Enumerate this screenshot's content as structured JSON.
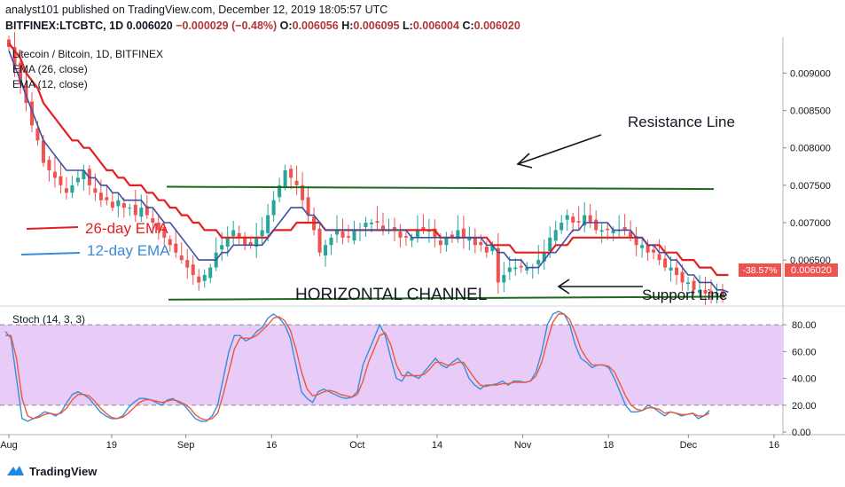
{
  "header": {
    "publisher": "analyst101 published on TradingView.com, December 12, 2019 18:05:57 UTC",
    "symbol": "BITFINEX:LTCBTC, 1D",
    "last": "0.006020",
    "change": "−0.000029 (−0.48%)",
    "o_label": "O:",
    "o_value": "0.006056",
    "h_label": "H:",
    "h_value": "0.006095",
    "l_label": "L:",
    "l_value": "0.006004",
    "c_label": "C:",
    "c_value": "0.006020"
  },
  "legend": {
    "pair": "Litecoin / Bitcoin, 1D, BITFINEX",
    "ema26": "EMA (26, close)",
    "ema12": "EMA (12, close)",
    "stoch": "Stoch (14, 3, 3)"
  },
  "annotations": {
    "resistance": "Resistance Line",
    "support": "Support Line",
    "channel": "HORIZONTAL CHANNEL",
    "ema26_text": "26-day EMA",
    "ema12_text": "12-day EMA"
  },
  "price_badge": {
    "pct": "-38.57%",
    "price": "0.006020"
  },
  "watermark": "TradingView",
  "colors": {
    "up": "#26a69a",
    "down": "#ef5350",
    "ema26": "#e32020",
    "ema12": "#3e4fa3",
    "trendline": "#1b6b1b",
    "stoch_k": "#3d8bd9",
    "stoch_d": "#e85a3c",
    "stoch_band": "#e8ccf7",
    "badge": "#ef5350"
  },
  "chart_data": [
    {
      "type": "candlestick",
      "ylim": [
        0.00592,
        0.00948
      ],
      "y_ticks": [
        "0.009000",
        "0.008500",
        "0.008000",
        "0.007500",
        "0.007000",
        "0.006500"
      ],
      "x_tick_labels": [
        "Aug",
        "19",
        "Sep",
        "16",
        "Oct",
        "14",
        "Nov",
        "18",
        "Dec",
        "16"
      ],
      "closes": [
        0.00935,
        0.0091,
        0.00885,
        0.0086,
        0.0083,
        0.0081,
        0.0078,
        0.0077,
        0.0076,
        0.0075,
        0.0074,
        0.0075,
        0.0076,
        0.0077,
        0.0075,
        0.0074,
        0.0073,
        0.0073,
        0.0072,
        0.0073,
        0.0072,
        0.0072,
        0.0071,
        0.0072,
        0.0071,
        0.007,
        0.0069,
        0.0068,
        0.0067,
        0.0066,
        0.0065,
        0.0064,
        0.0063,
        0.0062,
        0.0063,
        0.0064,
        0.0066,
        0.0067,
        0.0068,
        0.0069,
        0.0068,
        0.0067,
        0.0067,
        0.0068,
        0.0069,
        0.0071,
        0.0073,
        0.0075,
        0.0077,
        0.0076,
        0.0075,
        0.0073,
        0.0071,
        0.0069,
        0.0066,
        0.0067,
        0.0068,
        0.0069,
        0.0068,
        0.0068,
        0.0069,
        0.0069,
        0.007,
        0.007,
        0.007,
        0.0069,
        0.0069,
        0.0069,
        0.0068,
        0.0068,
        0.0068,
        0.0069,
        0.0069,
        0.0069,
        0.0068,
        0.0067,
        0.0068,
        0.0068,
        0.0069,
        0.0068,
        0.0068,
        0.0067,
        0.0067,
        0.0066,
        0.0067,
        0.0062,
        0.0063,
        0.0064,
        0.0064,
        0.0064,
        0.0064,
        0.0064,
        0.0065,
        0.0066,
        0.0068,
        0.0069,
        0.007,
        0.0071,
        0.007,
        0.007,
        0.0071,
        0.007,
        0.0069,
        0.0069,
        0.0069,
        0.0069,
        0.0069,
        0.0069,
        0.0068,
        0.0067,
        0.0067,
        0.0066,
        0.0066,
        0.0065,
        0.0064,
        0.0064,
        0.0063,
        0.0062,
        0.0062,
        0.0061,
        0.0061,
        0.00605,
        0.00605,
        0.00606,
        0.00602
      ],
      "ema26": [
        0.0094,
        0.0093,
        0.0092,
        0.009,
        0.0089,
        0.0088,
        0.0086,
        0.0085,
        0.0084,
        0.0083,
        0.0082,
        0.0081,
        0.0081,
        0.008,
        0.008,
        0.0079,
        0.0078,
        0.0077,
        0.0077,
        0.0076,
        0.0076,
        0.0075,
        0.0075,
        0.0075,
        0.0074,
        0.0074,
        0.0073,
        0.0073,
        0.0072,
        0.0072,
        0.0071,
        0.0071,
        0.007,
        0.007,
        0.0069,
        0.0069,
        0.0069,
        0.0068,
        0.0068,
        0.0068,
        0.0068,
        0.0068,
        0.0068,
        0.0068,
        0.0068,
        0.0068,
        0.0069,
        0.0069,
        0.0069,
        0.0069,
        0.007,
        0.007,
        0.007,
        0.007,
        0.007,
        0.0069,
        0.0069,
        0.0069,
        0.0069,
        0.0069,
        0.0069,
        0.0069,
        0.0069,
        0.0069,
        0.0069,
        0.0069,
        0.0069,
        0.0069,
        0.0069,
        0.0069,
        0.0069,
        0.0069,
        0.0069,
        0.0069,
        0.0069,
        0.0068,
        0.0068,
        0.0068,
        0.0068,
        0.0068,
        0.0068,
        0.0068,
        0.0068,
        0.0068,
        0.0067,
        0.0067,
        0.0067,
        0.0067,
        0.0066,
        0.0066,
        0.0066,
        0.0066,
        0.0066,
        0.0066,
        0.0066,
        0.0067,
        0.0067,
        0.0067,
        0.0068,
        0.0068,
        0.0068,
        0.0068,
        0.0068,
        0.0068,
        0.0068,
        0.0068,
        0.0068,
        0.0068,
        0.0068,
        0.0068,
        0.0068,
        0.0067,
        0.0067,
        0.0067,
        0.0066,
        0.0066,
        0.0066,
        0.0065,
        0.0065,
        0.0065,
        0.0064,
        0.0064,
        0.0064,
        0.0063,
        0.0063,
        0.0063
      ],
      "ema12": [
        0.0093,
        0.0091,
        0.0089,
        0.0087,
        0.0085,
        0.0083,
        0.0081,
        0.008,
        0.0079,
        0.0078,
        0.0077,
        0.0077,
        0.0077,
        0.0077,
        0.0076,
        0.0076,
        0.0075,
        0.0075,
        0.0074,
        0.0074,
        0.0073,
        0.0073,
        0.0073,
        0.0073,
        0.0072,
        0.0072,
        0.0071,
        0.007,
        0.007,
        0.0069,
        0.0068,
        0.0067,
        0.0066,
        0.0065,
        0.0065,
        0.0065,
        0.0065,
        0.0066,
        0.0066,
        0.0067,
        0.0067,
        0.0067,
        0.0067,
        0.0067,
        0.0067,
        0.0068,
        0.0069,
        0.007,
        0.0071,
        0.0072,
        0.0072,
        0.0072,
        0.0071,
        0.0071,
        0.007,
        0.0069,
        0.0069,
        0.0069,
        0.0069,
        0.0069,
        0.0069,
        0.0069,
        0.0069,
        0.0069,
        0.0069,
        0.0069,
        0.0069,
        0.0069,
        0.0069,
        0.0069,
        0.0068,
        0.0068,
        0.0068,
        0.0068,
        0.0068,
        0.0068,
        0.0068,
        0.0068,
        0.0068,
        0.0068,
        0.0068,
        0.0068,
        0.0068,
        0.0067,
        0.0067,
        0.0066,
        0.0066,
        0.0065,
        0.0065,
        0.0065,
        0.0064,
        0.0064,
        0.0064,
        0.0065,
        0.0066,
        0.0066,
        0.0067,
        0.0068,
        0.0069,
        0.0069,
        0.007,
        0.007,
        0.007,
        0.007,
        0.007,
        0.0069,
        0.0069,
        0.0069,
        0.0069,
        0.0068,
        0.0068,
        0.0067,
        0.0067,
        0.0066,
        0.0066,
        0.0065,
        0.0065,
        0.0064,
        0.0063,
        0.0063,
        0.0062,
        0.0062,
        0.0062,
        0.0061,
        0.0061,
        0.00607
      ]
    },
    {
      "type": "line",
      "name": "Stoch (14, 3, 3)",
      "ylim": [
        -2,
        92
      ],
      "y_ticks": [
        "80.00",
        "60.00",
        "40.00",
        "20.00",
        "0.00"
      ],
      "band": [
        20,
        80
      ],
      "k": [
        75,
        70,
        40,
        10,
        8,
        10,
        12,
        15,
        14,
        12,
        15,
        22,
        28,
        30,
        28,
        25,
        20,
        15,
        12,
        10,
        10,
        12,
        18,
        22,
        25,
        25,
        24,
        22,
        20,
        24,
        25,
        22,
        20,
        15,
        10,
        8,
        8,
        12,
        20,
        40,
        60,
        72,
        72,
        68,
        70,
        75,
        78,
        85,
        88,
        85,
        80,
        70,
        50,
        30,
        25,
        22,
        30,
        32,
        30,
        28,
        26,
        25,
        26,
        30,
        50,
        60,
        70,
        80,
        72,
        55,
        40,
        38,
        45,
        42,
        40,
        45,
        50,
        55,
        50,
        48,
        52,
        55,
        50,
        40,
        35,
        32,
        35,
        35,
        36,
        38,
        35,
        38,
        38,
        37,
        38,
        45,
        60,
        80,
        88,
        90,
        88,
        80,
        65,
        55,
        52,
        48,
        50,
        50,
        48,
        40,
        30,
        20,
        15,
        15,
        16,
        20,
        18,
        15,
        12,
        15,
        14,
        12,
        13,
        14,
        10,
        12,
        16
      ],
      "d": [
        72,
        72,
        55,
        25,
        12,
        10,
        11,
        13,
        14,
        13,
        14,
        18,
        24,
        28,
        28,
        27,
        23,
        18,
        14,
        11,
        10,
        11,
        14,
        18,
        22,
        24,
        24,
        23,
        22,
        23,
        24,
        23,
        21,
        18,
        13,
        10,
        9,
        10,
        14,
        28,
        45,
        62,
        70,
        70,
        70,
        72,
        76,
        80,
        85,
        86,
        83,
        76,
        62,
        45,
        32,
        27,
        28,
        30,
        31,
        30,
        28,
        27,
        26,
        28,
        38,
        52,
        62,
        72,
        74,
        65,
        50,
        42,
        42,
        42,
        42,
        43,
        47,
        52,
        52,
        50,
        50,
        52,
        52,
        46,
        40,
        35,
        34,
        35,
        35,
        36,
        36,
        37,
        37,
        37,
        38,
        42,
        52,
        68,
        82,
        88,
        88,
        84,
        74,
        62,
        55,
        50,
        50,
        50,
        49,
        45,
        36,
        27,
        20,
        17,
        16,
        18,
        18,
        17,
        14,
        15,
        14,
        13,
        13,
        14,
        12,
        12,
        14
      ]
    }
  ]
}
